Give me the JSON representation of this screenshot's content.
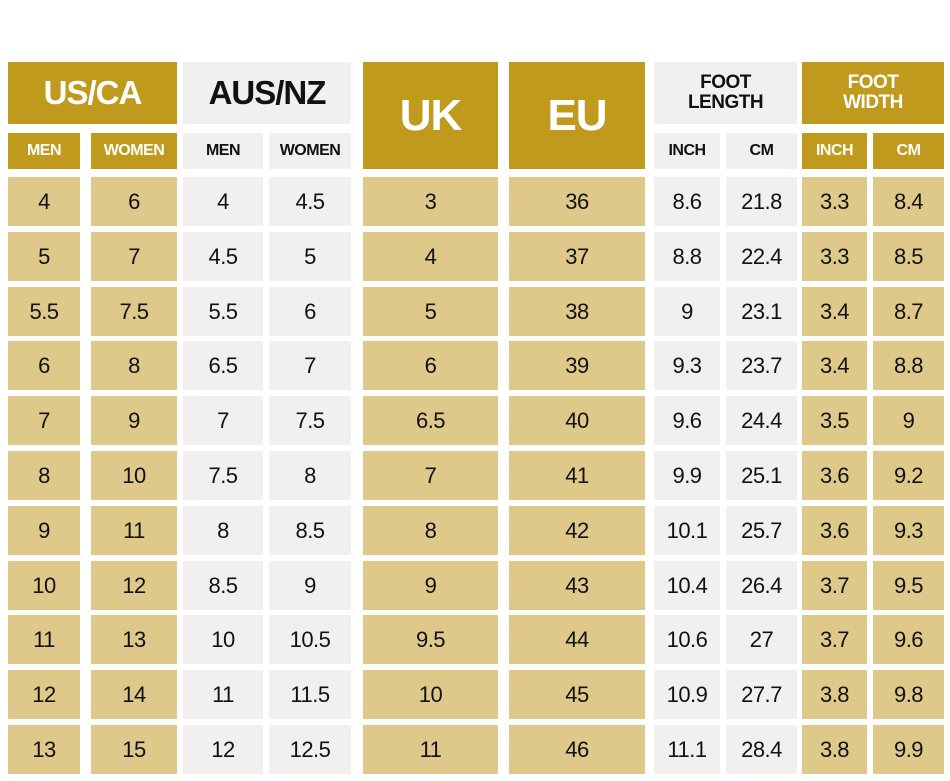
{
  "headers": {
    "us_ca": "US/CA",
    "aus_nz": "AUS/NZ",
    "uk": "UK",
    "eu": "EU",
    "foot_length": "FOOT LENGTH",
    "foot_width": "FOOT WIDTH"
  },
  "subheaders": {
    "us_men": "MEN",
    "us_women": "WOMEN",
    "aus_men": "MEN",
    "aus_women": "WOMEN",
    "fl_inch": "INCH",
    "fl_cm": "CM",
    "fw_inch": "INCH",
    "fw_cm": "CM"
  },
  "colors": {
    "gold": "#c09a1c",
    "tan": "#dfc98a",
    "light": "#f2f0ee"
  },
  "rows": [
    {
      "us_men": "4",
      "us_women": "6",
      "aus_men": "4",
      "aus_women": "4.5",
      "uk": "3",
      "eu": "36",
      "fl_inch": "8.6",
      "fl_cm": "21.8",
      "fw_inch": "3.3",
      "fw_cm": "8.4"
    },
    {
      "us_men": "5",
      "us_women": "7",
      "aus_men": "4.5",
      "aus_women": "5",
      "uk": "4",
      "eu": "37",
      "fl_inch": "8.8",
      "fl_cm": "22.4",
      "fw_inch": "3.3",
      "fw_cm": "8.5"
    },
    {
      "us_men": "5.5",
      "us_women": "7.5",
      "aus_men": "5.5",
      "aus_women": "6",
      "uk": "5",
      "eu": "38",
      "fl_inch": "9",
      "fl_cm": "23.1",
      "fw_inch": "3.4",
      "fw_cm": "8.7"
    },
    {
      "us_men": "6",
      "us_women": "8",
      "aus_men": "6.5",
      "aus_women": "7",
      "uk": "6",
      "eu": "39",
      "fl_inch": "9.3",
      "fl_cm": "23.7",
      "fw_inch": "3.4",
      "fw_cm": "8.8"
    },
    {
      "us_men": "7",
      "us_women": "9",
      "aus_men": "7",
      "aus_women": "7.5",
      "uk": "6.5",
      "eu": "40",
      "fl_inch": "9.6",
      "fl_cm": "24.4",
      "fw_inch": "3.5",
      "fw_cm": "9"
    },
    {
      "us_men": "8",
      "us_women": "10",
      "aus_men": "7.5",
      "aus_women": "8",
      "uk": "7",
      "eu": "41",
      "fl_inch": "9.9",
      "fl_cm": "25.1",
      "fw_inch": "3.6",
      "fw_cm": "9.2"
    },
    {
      "us_men": "9",
      "us_women": "11",
      "aus_men": "8",
      "aus_women": "8.5",
      "uk": "8",
      "eu": "42",
      "fl_inch": "10.1",
      "fl_cm": "25.7",
      "fw_inch": "3.6",
      "fw_cm": "9.3"
    },
    {
      "us_men": "10",
      "us_women": "12",
      "aus_men": "8.5",
      "aus_women": "9",
      "uk": "9",
      "eu": "43",
      "fl_inch": "10.4",
      "fl_cm": "26.4",
      "fw_inch": "3.7",
      "fw_cm": "9.5"
    },
    {
      "us_men": "11",
      "us_women": "13",
      "aus_men": "10",
      "aus_women": "10.5",
      "uk": "9.5",
      "eu": "44",
      "fl_inch": "10.6",
      "fl_cm": "27",
      "fw_inch": "3.7",
      "fw_cm": "9.6"
    },
    {
      "us_men": "12",
      "us_women": "14",
      "aus_men": "11",
      "aus_women": "11.5",
      "uk": "10",
      "eu": "45",
      "fl_inch": "10.9",
      "fl_cm": "27.7",
      "fw_inch": "3.8",
      "fw_cm": "9.8"
    },
    {
      "us_men": "13",
      "us_women": "15",
      "aus_men": "12",
      "aus_women": "12.5",
      "uk": "11",
      "eu": "46",
      "fl_inch": "11.1",
      "fl_cm": "28.4",
      "fw_inch": "3.8",
      "fw_cm": "9.9"
    }
  ]
}
